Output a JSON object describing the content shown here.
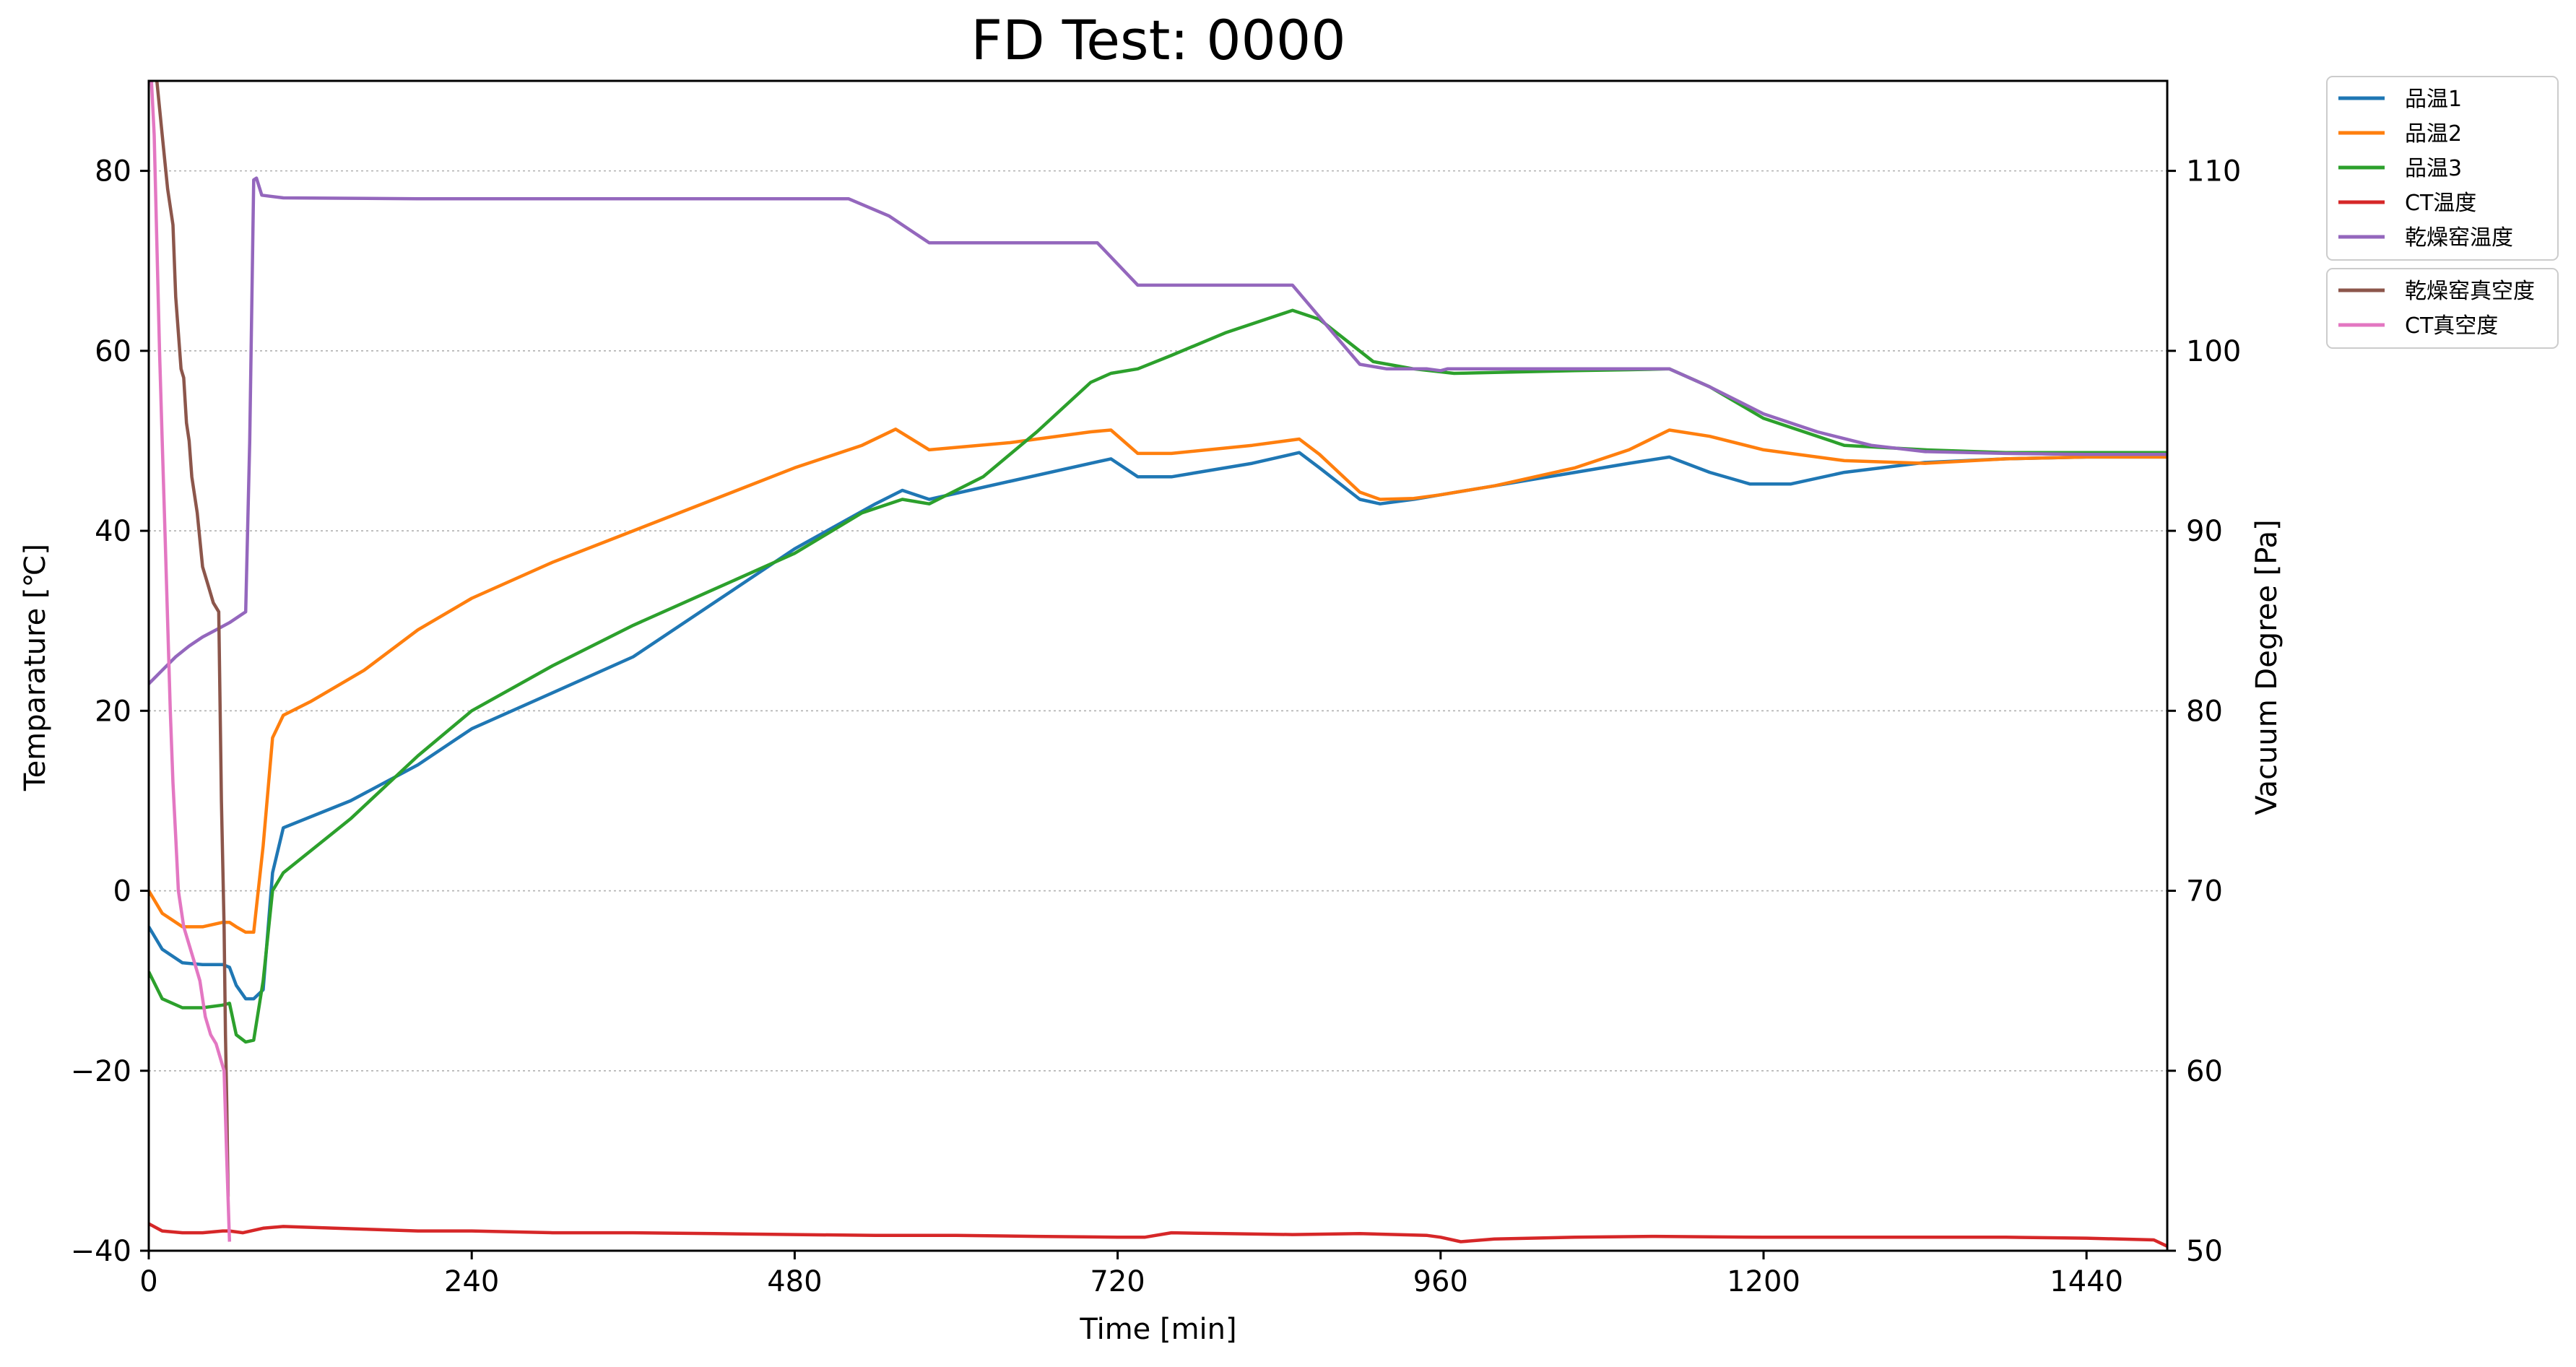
{
  "chart_data": {
    "type": "line",
    "title": "FD Test: 0000",
    "xlabel": "Time [min]",
    "ylabel": "Temparature [℃]",
    "y2label": "Vacuum Degree [Pa]",
    "xlim": [
      0,
      1500
    ],
    "ylim": [
      -40,
      90
    ],
    "y2lim": [
      50,
      115
    ],
    "xticks": [
      0,
      240,
      480,
      720,
      960,
      1200,
      1440
    ],
    "yticks": [
      -40,
      -20,
      0,
      20,
      40,
      60,
      80
    ],
    "y2ticks": [
      50,
      60,
      70,
      80,
      90,
      100,
      110
    ],
    "grid": "horizontal dotted",
    "legend_placement": "outside right, upper",
    "series": [
      {
        "name": "品温1",
        "axis": "left",
        "color": "#1f77b4",
        "x": [
          0,
          10,
          25,
          40,
          55,
          60,
          65,
          72,
          78,
          85,
          92,
          100,
          150,
          200,
          240,
          300,
          360,
          420,
          480,
          540,
          560,
          580,
          640,
          700,
          715,
          735,
          760,
          820,
          855,
          870,
          900,
          915,
          940,
          960,
          1000,
          1060,
          1100,
          1130,
          1160,
          1190,
          1220,
          1260,
          1320,
          1380,
          1440,
          1500
        ],
        "y": [
          -4,
          -6.5,
          -8,
          -8.2,
          -8.2,
          -8.5,
          -10.5,
          -12,
          -12,
          -11,
          2,
          7,
          10,
          14,
          18,
          22,
          26,
          32,
          38,
          43,
          44.5,
          43.5,
          45.5,
          47.5,
          48,
          46,
          46,
          47.5,
          48.7,
          47,
          43.5,
          43,
          43.5,
          44,
          45,
          46.5,
          47.5,
          48.2,
          46.5,
          45.2,
          45.2,
          46.5,
          47.6,
          48,
          48.2,
          48.2
        ]
      },
      {
        "name": "品温2",
        "axis": "left",
        "color": "#ff7f0e",
        "x": [
          0,
          10,
          25,
          40,
          55,
          60,
          65,
          72,
          78,
          85,
          92,
          100,
          120,
          160,
          200,
          240,
          300,
          360,
          420,
          480,
          530,
          555,
          580,
          640,
          700,
          715,
          735,
          760,
          820,
          855,
          870,
          900,
          915,
          940,
          960,
          1000,
          1060,
          1100,
          1130,
          1160,
          1200,
          1260,
          1320,
          1380,
          1440,
          1500
        ],
        "y": [
          0,
          -2.5,
          -4,
          -4,
          -3.5,
          -3.5,
          -4,
          -4.6,
          -4.6,
          5,
          17,
          19.5,
          21,
          24.5,
          29,
          32.5,
          36.5,
          40,
          43.5,
          47,
          49.5,
          51.3,
          49,
          49.8,
          51,
          51.2,
          48.6,
          48.6,
          49.5,
          50.2,
          48.5,
          44.3,
          43.5,
          43.6,
          44,
          45,
          47,
          49,
          51.2,
          50.5,
          49,
          47.8,
          47.5,
          48,
          48.2,
          48.2
        ]
      },
      {
        "name": "品温3",
        "axis": "left",
        "color": "#2ca02c",
        "x": [
          0,
          10,
          25,
          40,
          55,
          60,
          65,
          72,
          78,
          85,
          92,
          100,
          150,
          200,
          240,
          300,
          360,
          420,
          480,
          530,
          560,
          580,
          620,
          660,
          700,
          715,
          735,
          760,
          800,
          850,
          870,
          910,
          940,
          970,
          1000,
          1060,
          1100,
          1130,
          1160,
          1200,
          1260,
          1320,
          1380,
          1440,
          1500
        ],
        "y": [
          -9,
          -12,
          -13,
          -13,
          -12.7,
          -12.5,
          -16,
          -16.8,
          -16.6,
          -10,
          0,
          2,
          8,
          15,
          20,
          25,
          29.5,
          33.5,
          37.5,
          42,
          43.5,
          43,
          46,
          51,
          56.5,
          57.5,
          58,
          59.5,
          62,
          64.5,
          63.5,
          58.8,
          58,
          57.5,
          57.6,
          57.8,
          57.9,
          58,
          56,
          52.5,
          49.5,
          49,
          48.7,
          48.7,
          48.7
        ]
      },
      {
        "name": "CT温度",
        "axis": "left",
        "color": "#d62728",
        "x": [
          0,
          10,
          25,
          40,
          55,
          60,
          70,
          85,
          100,
          120,
          160,
          200,
          240,
          300,
          360,
          420,
          480,
          540,
          600,
          660,
          720,
          740,
          760,
          800,
          850,
          900,
          950,
          960,
          975,
          1000,
          1060,
          1120,
          1200,
          1260,
          1320,
          1380,
          1440,
          1490,
          1500
        ],
        "y": [
          -37,
          -37.8,
          -38,
          -38,
          -37.8,
          -37.8,
          -38,
          -37.5,
          -37.3,
          -37.4,
          -37.6,
          -37.8,
          -37.8,
          -38,
          -38,
          -38.1,
          -38.2,
          -38.3,
          -38.3,
          -38.4,
          -38.5,
          -38.5,
          -38,
          -38.1,
          -38.2,
          -38.1,
          -38.3,
          -38.5,
          -39,
          -38.7,
          -38.5,
          -38.4,
          -38.5,
          -38.5,
          -38.5,
          -38.5,
          -38.6,
          -38.8,
          -39.5
        ]
      },
      {
        "name": "乾燥窑温度",
        "axis": "left",
        "color": "#9467bd",
        "x": [
          0,
          10,
          20,
          30,
          40,
          50,
          60,
          70,
          72,
          75,
          78,
          80,
          84,
          100,
          200,
          300,
          400,
          480,
          520,
          550,
          580,
          640,
          700,
          705,
          735,
          760,
          820,
          850,
          880,
          900,
          920,
          950,
          960,
          965,
          1000,
          1060,
          1100,
          1130,
          1160,
          1200,
          1240,
          1280,
          1320,
          1380,
          1440,
          1500
        ],
        "y": [
          23,
          24.5,
          26,
          27.2,
          28.2,
          29,
          29.8,
          30.8,
          31,
          50,
          79,
          79.2,
          77.3,
          77,
          76.9,
          76.9,
          76.9,
          76.9,
          76.9,
          75,
          72,
          72,
          72,
          72,
          67.3,
          67.3,
          67.3,
          67.3,
          62,
          58.5,
          58,
          58,
          57.8,
          58,
          58,
          58,
          58,
          58,
          56,
          53,
          51,
          49.5,
          48.8,
          48.6,
          48.5,
          48.5
        ]
      },
      {
        "name": "乾燥窑真空度",
        "axis": "right",
        "color": "#8c564b",
        "x": [
          6,
          10,
          14,
          18,
          20,
          22,
          24,
          26,
          28,
          30,
          32,
          36,
          40,
          44,
          48,
          52,
          54,
          56,
          57,
          58,
          59
        ],
        "y": [
          115,
          112,
          109,
          107,
          103,
          101,
          99,
          98.5,
          96,
          95,
          93,
          91,
          88,
          87,
          86,
          85.5,
          75,
          68,
          62,
          58,
          53
        ]
      },
      {
        "name": "CT真空度",
        "axis": "right",
        "color": "#e377c2",
        "x": [
          2,
          4,
          6,
          8,
          10,
          12,
          14,
          16,
          18,
          20,
          22,
          26,
          30,
          34,
          38,
          42,
          46,
          50,
          54,
          56,
          58,
          60
        ],
        "y": [
          115,
          112,
          106,
          100,
          95,
          90,
          85,
          80,
          76,
          73,
          70,
          68,
          67,
          66,
          65,
          63,
          62,
          61.5,
          60.5,
          60,
          55,
          50.5
        ]
      }
    ]
  }
}
